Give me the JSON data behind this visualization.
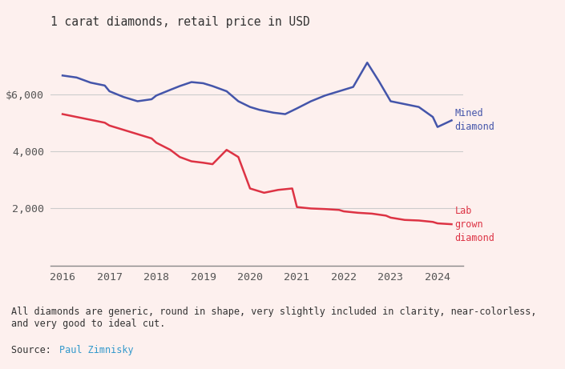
{
  "title": "1 carat diamonds, retail price in USD",
  "background_color": "#fdf0ee",
  "mined_color": "#4455aa",
  "lab_color": "#dd3344",
  "grid_color": "#cccccc",
  "footnote_color": "#333333",
  "source_label_color": "#333333",
  "source_link_color": "#3399cc",
  "footnote": "All diamonds are generic, round in shape, very slightly included in clarity, near-colorless,\nand very good to ideal cut.",
  "source_text": "Source: ",
  "source_link": "Paul Zimnisky",
  "mined_x": [
    2016.0,
    2016.3,
    2016.6,
    2016.9,
    2017.0,
    2017.3,
    2017.6,
    2017.9,
    2018.0,
    2018.3,
    2018.5,
    2018.75,
    2019.0,
    2019.2,
    2019.5,
    2019.75,
    2020.0,
    2020.2,
    2020.5,
    2020.75,
    2021.0,
    2021.3,
    2021.6,
    2021.9,
    2022.0,
    2022.2,
    2022.5,
    2022.75,
    2023.0,
    2023.3,
    2023.6,
    2023.9,
    2024.0,
    2024.3
  ],
  "mined_y": [
    6650,
    6580,
    6400,
    6300,
    6100,
    5900,
    5750,
    5820,
    5950,
    6150,
    6280,
    6420,
    6380,
    6280,
    6100,
    5750,
    5550,
    5450,
    5350,
    5300,
    5500,
    5750,
    5950,
    6100,
    6150,
    6250,
    7100,
    6450,
    5750,
    5650,
    5550,
    5200,
    4850,
    5080
  ],
  "lab_x": [
    2016.0,
    2016.3,
    2016.6,
    2016.9,
    2017.0,
    2017.3,
    2017.6,
    2017.9,
    2018.0,
    2018.3,
    2018.5,
    2018.75,
    2019.0,
    2019.2,
    2019.5,
    2019.75,
    2020.0,
    2020.3,
    2020.6,
    2020.9,
    2021.0,
    2021.3,
    2021.6,
    2021.9,
    2022.0,
    2022.3,
    2022.6,
    2022.9,
    2023.0,
    2023.3,
    2023.6,
    2023.9,
    2024.0,
    2024.3
  ],
  "lab_y": [
    5300,
    5200,
    5100,
    5000,
    4900,
    4750,
    4600,
    4450,
    4300,
    4050,
    3800,
    3650,
    3600,
    3550,
    4050,
    3800,
    2700,
    2550,
    2650,
    2700,
    2050,
    2000,
    1980,
    1950,
    1900,
    1850,
    1820,
    1750,
    1680,
    1600,
    1580,
    1530,
    1480,
    1450
  ],
  "ylim": [
    0,
    8000
  ],
  "yticks": [
    2000,
    4000,
    6000
  ],
  "xlim": [
    2015.75,
    2024.55
  ],
  "xticks": [
    2016,
    2017,
    2018,
    2019,
    2020,
    2021,
    2022,
    2023,
    2024
  ]
}
